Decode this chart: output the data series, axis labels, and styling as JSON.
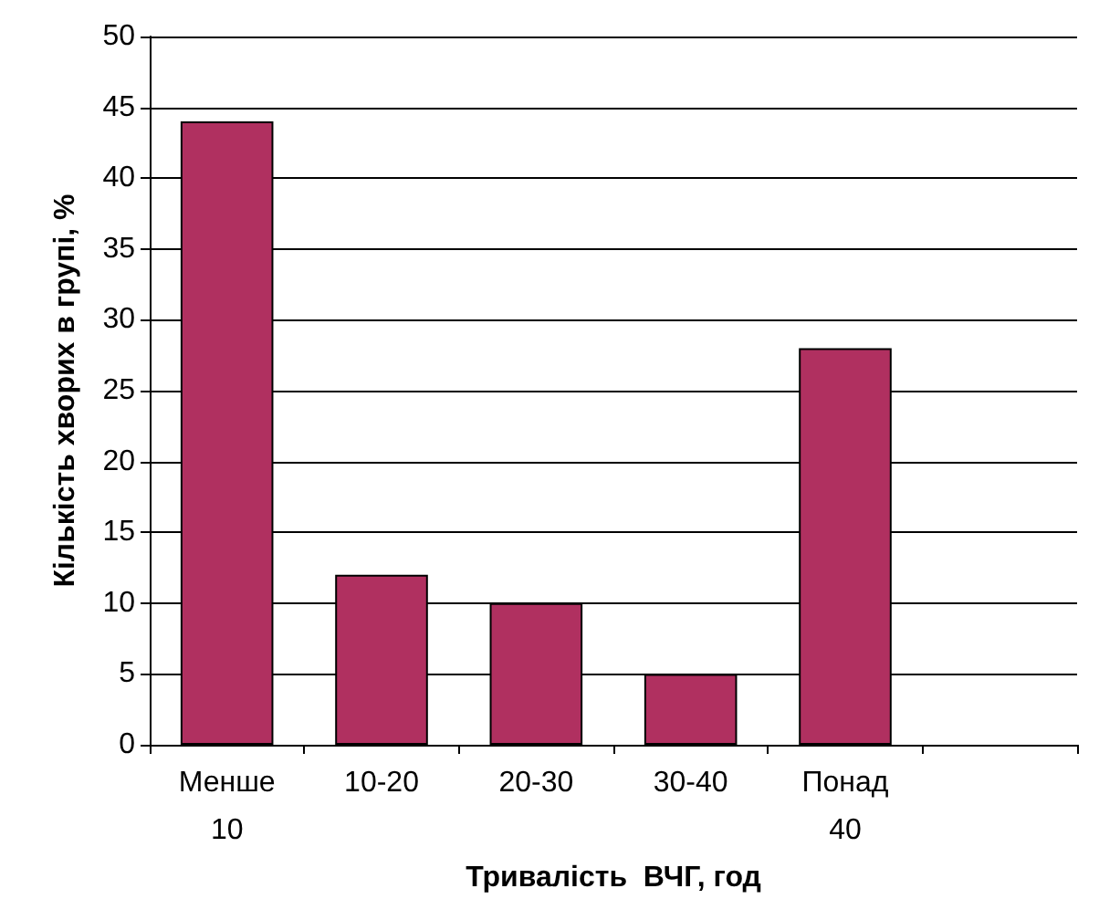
{
  "chart_data": {
    "type": "bar",
    "xlabel": "Тривалість  ВЧГ, год",
    "ylabel": "Кількість хворих в групі, %",
    "categories": [
      "Менше 10",
      "10-20",
      "20-30",
      "30-40",
      "Понад 40",
      null
    ],
    "values": [
      44,
      12,
      10,
      5,
      28,
      null
    ],
    "color": "#b03060",
    "ylim": [
      0,
      50
    ],
    "yticks": [
      0,
      5,
      10,
      15,
      20,
      25,
      30,
      35,
      40,
      45,
      50
    ],
    "grid": "y"
  }
}
